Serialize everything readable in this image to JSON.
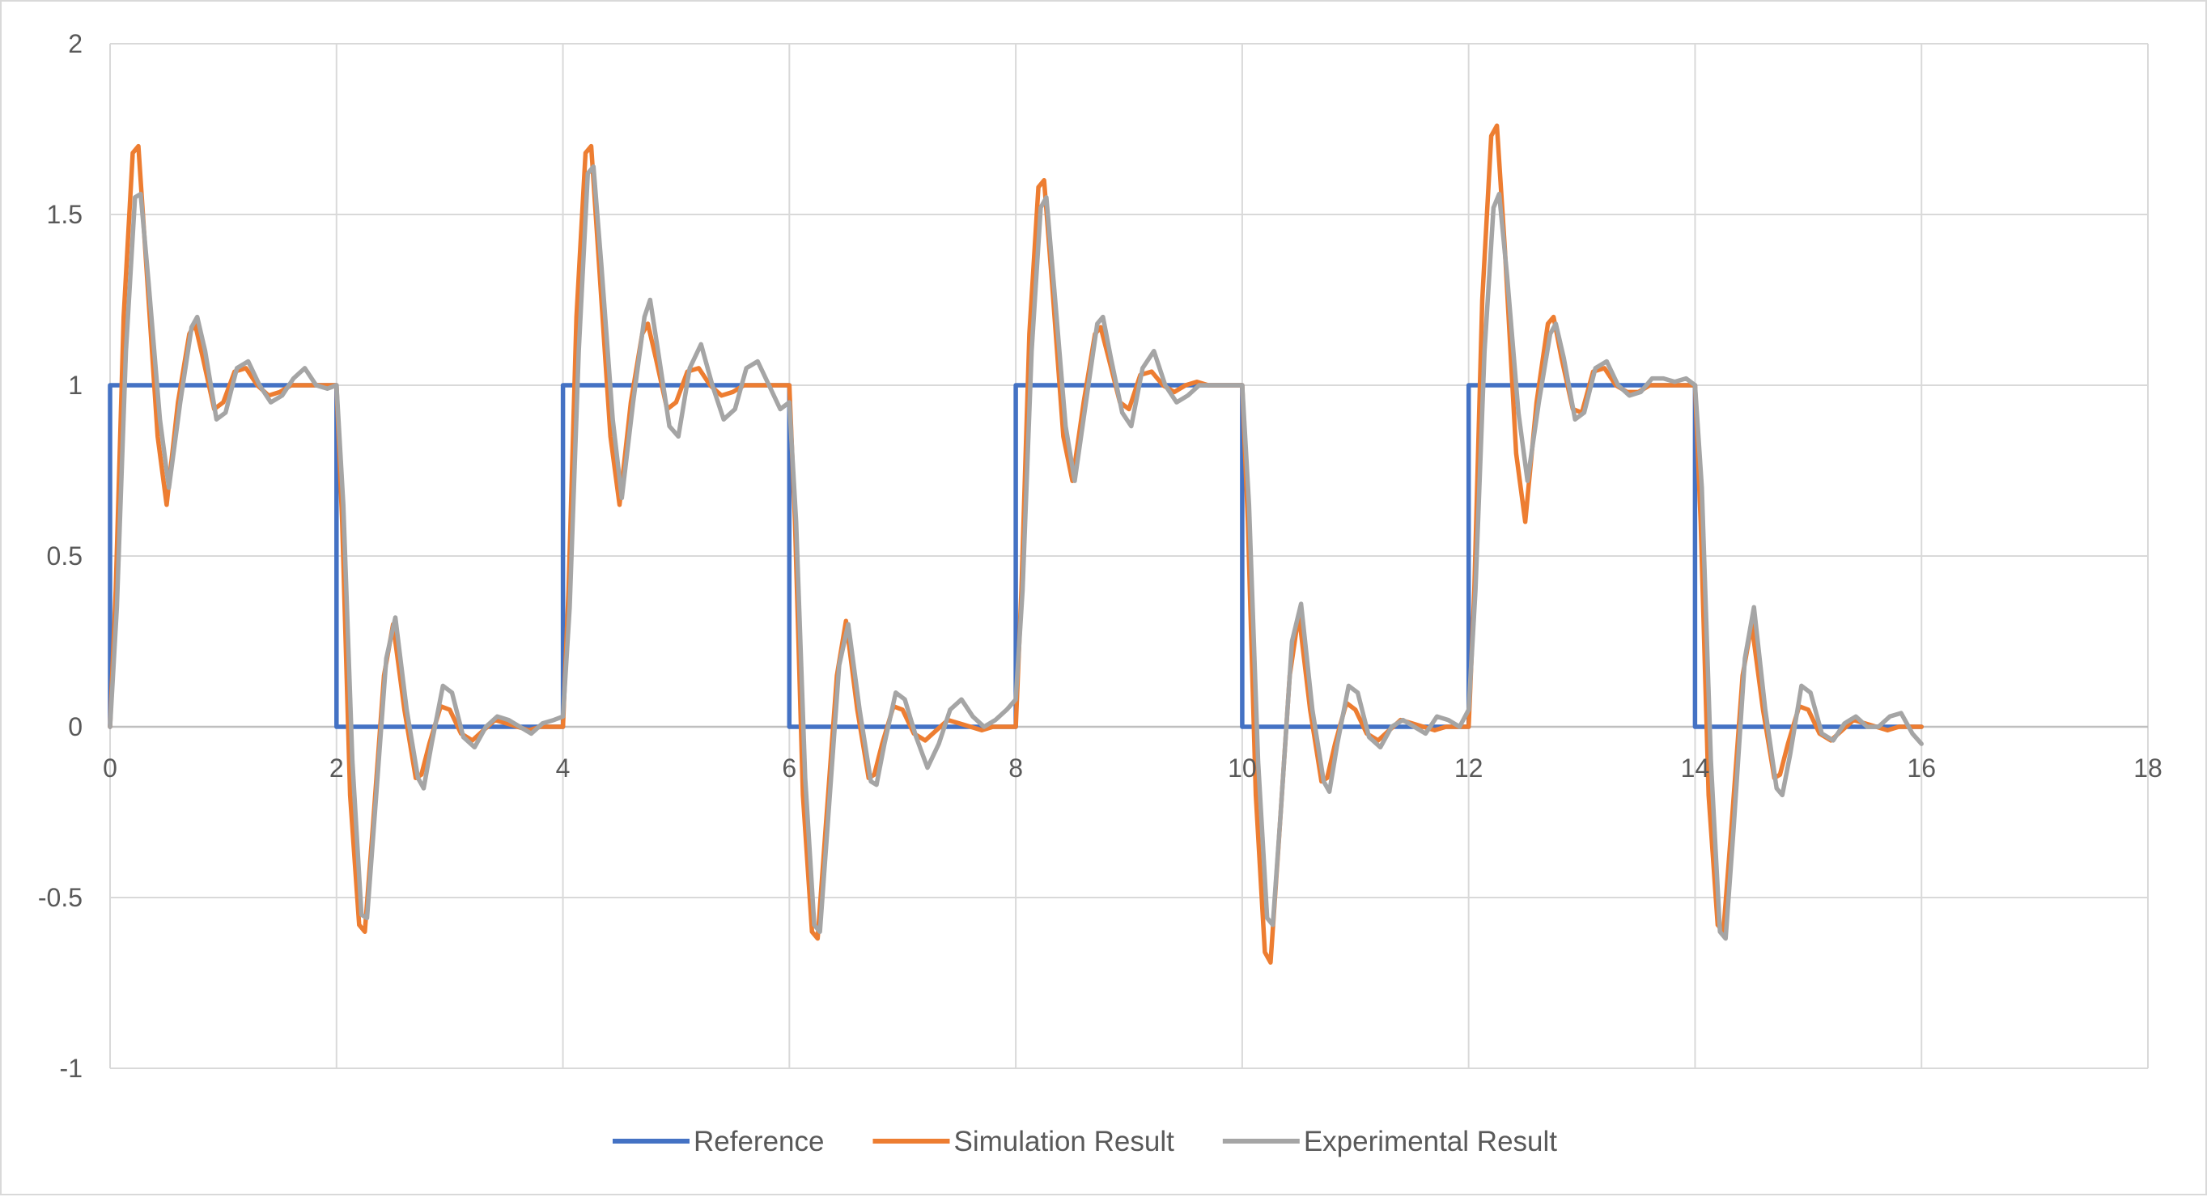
{
  "chart_data": {
    "type": "line",
    "title": "",
    "xlabel": "",
    "ylabel": "",
    "xlim": [
      0,
      18
    ],
    "ylim": [
      -1,
      2
    ],
    "x_ticks": [
      0,
      2,
      4,
      6,
      8,
      10,
      12,
      14,
      16,
      18
    ],
    "y_ticks": [
      -1,
      -0.5,
      0,
      0.5,
      1,
      1.5,
      2
    ],
    "x_tick_labels": [
      "0",
      "2",
      "4",
      "6",
      "8",
      "10",
      "12",
      "14",
      "16",
      "18"
    ],
    "y_tick_labels": [
      "-1",
      "-0.5",
      "0",
      "0.5",
      "1",
      "1.5",
      "2"
    ],
    "grid": true,
    "legend_position": "bottom",
    "series": [
      {
        "name": "Reference",
        "color": "#4472c4",
        "x": [
          0,
          0,
          2,
          2,
          4,
          4,
          6,
          6,
          8,
          8,
          10,
          10,
          12,
          12,
          14,
          14,
          16
        ],
        "y": [
          0,
          1,
          1,
          0,
          0,
          1,
          1,
          0,
          0,
          1,
          1,
          0,
          0,
          1,
          1,
          0,
          0
        ]
      },
      {
        "name": "Simulation Result",
        "color": "#ed7d31",
        "x": [
          0,
          0.05,
          0.12,
          0.2,
          0.25,
          0.32,
          0.42,
          0.5,
          0.6,
          0.7,
          0.75,
          0.82,
          0.92,
          1.0,
          1.1,
          1.2,
          1.3,
          1.4,
          1.5,
          1.6,
          1.7,
          1.8,
          1.9,
          2.0,
          2.05,
          2.12,
          2.2,
          2.25,
          2.32,
          2.42,
          2.5,
          2.6,
          2.7,
          2.75,
          2.82,
          2.92,
          3.0,
          3.1,
          3.2,
          3.3,
          3.4,
          3.5,
          3.6,
          3.7,
          3.8,
          3.9,
          4.0,
          4.05,
          4.12,
          4.2,
          4.25,
          4.32,
          4.42,
          4.5,
          4.6,
          4.7,
          4.75,
          4.82,
          4.92,
          5.0,
          5.1,
          5.2,
          5.3,
          5.4,
          5.5,
          5.6,
          5.7,
          5.8,
          5.9,
          6.0,
          6.05,
          6.12,
          6.2,
          6.25,
          6.32,
          6.42,
          6.5,
          6.6,
          6.7,
          6.75,
          6.82,
          6.92,
          7.0,
          7.1,
          7.2,
          7.3,
          7.4,
          7.5,
          7.6,
          7.7,
          7.8,
          7.9,
          8.0,
          8.05,
          8.12,
          8.2,
          8.25,
          8.32,
          8.42,
          8.5,
          8.6,
          8.7,
          8.75,
          8.82,
          8.92,
          9.0,
          9.1,
          9.2,
          9.3,
          9.4,
          9.5,
          9.6,
          9.7,
          9.8,
          9.9,
          10.0,
          10.05,
          10.12,
          10.2,
          10.25,
          10.32,
          10.42,
          10.5,
          10.6,
          10.7,
          10.75,
          10.82,
          10.92,
          11.0,
          11.1,
          11.2,
          11.3,
          11.4,
          11.5,
          11.6,
          11.7,
          11.8,
          11.9,
          12.0,
          12.05,
          12.12,
          12.2,
          12.25,
          12.32,
          12.42,
          12.5,
          12.6,
          12.7,
          12.75,
          12.82,
          12.92,
          13.0,
          13.1,
          13.2,
          13.3,
          13.4,
          13.5,
          13.6,
          13.7,
          13.8,
          13.9,
          14.0,
          14.05,
          14.12,
          14.2,
          14.25,
          14.32,
          14.42,
          14.5,
          14.6,
          14.7,
          14.75,
          14.82,
          14.92,
          15.0,
          15.1,
          15.2,
          15.3,
          15.4,
          15.5,
          15.6,
          15.7,
          15.8,
          15.9,
          16.0
        ],
        "y": [
          0,
          0.4,
          1.2,
          1.68,
          1.7,
          1.35,
          0.85,
          0.65,
          0.95,
          1.15,
          1.18,
          1.08,
          0.93,
          0.95,
          1.04,
          1.05,
          1.0,
          0.97,
          0.98,
          1.0,
          1.0,
          1.0,
          1.0,
          1.0,
          0.6,
          -0.2,
          -0.58,
          -0.6,
          -0.3,
          0.15,
          0.3,
          0.05,
          -0.15,
          -0.14,
          -0.05,
          0.06,
          0.05,
          -0.02,
          -0.04,
          -0.01,
          0.02,
          0.01,
          0.0,
          -0.01,
          0.0,
          0.0,
          0.0,
          0.4,
          1.2,
          1.68,
          1.7,
          1.35,
          0.85,
          0.65,
          0.95,
          1.15,
          1.18,
          1.08,
          0.93,
          0.95,
          1.04,
          1.05,
          1.0,
          0.97,
          0.98,
          1.0,
          1.0,
          1.0,
          1.0,
          1.0,
          0.6,
          -0.2,
          -0.6,
          -0.62,
          -0.3,
          0.15,
          0.31,
          0.05,
          -0.15,
          -0.14,
          -0.05,
          0.06,
          0.05,
          -0.02,
          -0.04,
          -0.01,
          0.02,
          0.01,
          0.0,
          -0.01,
          0.0,
          0.0,
          0.0,
          0.4,
          1.15,
          1.58,
          1.6,
          1.3,
          0.85,
          0.72,
          0.95,
          1.15,
          1.17,
          1.08,
          0.95,
          0.93,
          1.03,
          1.04,
          1.0,
          0.98,
          1.0,
          1.01,
          1.0,
          1.0,
          1.0,
          1.0,
          0.6,
          -0.2,
          -0.66,
          -0.69,
          -0.35,
          0.15,
          0.33,
          0.05,
          -0.16,
          -0.15,
          -0.05,
          0.07,
          0.05,
          -0.02,
          -0.04,
          -0.01,
          0.02,
          0.01,
          0.0,
          -0.01,
          0.0,
          0.0,
          0.0,
          0.4,
          1.25,
          1.73,
          1.76,
          1.4,
          0.8,
          0.6,
          0.95,
          1.18,
          1.2,
          1.08,
          0.93,
          0.92,
          1.04,
          1.05,
          1.0,
          0.98,
          0.98,
          1.0,
          1.0,
          1.0,
          1.0,
          1.0,
          0.6,
          -0.2,
          -0.58,
          -0.6,
          -0.3,
          0.15,
          0.3,
          0.05,
          -0.15,
          -0.14,
          -0.05,
          0.06,
          0.05,
          -0.02,
          -0.04,
          -0.01,
          0.02,
          0.01,
          0.0,
          -0.01,
          0.0,
          0.0,
          0.0
        ]
      },
      {
        "name": "Experimental Result",
        "color": "#a5a5a5",
        "x": [
          0,
          0.06,
          0.14,
          0.22,
          0.27,
          0.34,
          0.44,
          0.52,
          0.62,
          0.72,
          0.77,
          0.84,
          0.94,
          1.02,
          1.12,
          1.22,
          1.32,
          1.42,
          1.52,
          1.62,
          1.72,
          1.82,
          1.92,
          2.0,
          2.06,
          2.14,
          2.22,
          2.27,
          2.34,
          2.44,
          2.52,
          2.62,
          2.72,
          2.77,
          2.84,
          2.94,
          3.02,
          3.12,
          3.22,
          3.32,
          3.42,
          3.52,
          3.62,
          3.72,
          3.82,
          3.92,
          4.0,
          4.06,
          4.14,
          4.22,
          4.27,
          4.34,
          4.44,
          4.52,
          4.62,
          4.72,
          4.77,
          4.84,
          4.94,
          5.02,
          5.12,
          5.22,
          5.32,
          5.42,
          5.52,
          5.62,
          5.72,
          5.82,
          5.92,
          6.0,
          6.06,
          6.14,
          6.22,
          6.27,
          6.34,
          6.44,
          6.52,
          6.62,
          6.72,
          6.77,
          6.84,
          6.94,
          7.02,
          7.12,
          7.22,
          7.32,
          7.42,
          7.52,
          7.62,
          7.72,
          7.82,
          7.92,
          8.0,
          8.06,
          8.14,
          8.22,
          8.27,
          8.34,
          8.44,
          8.52,
          8.62,
          8.72,
          8.77,
          8.84,
          8.94,
          9.02,
          9.12,
          9.22,
          9.32,
          9.42,
          9.52,
          9.62,
          9.72,
          9.82,
          9.92,
          10.0,
          10.06,
          10.14,
          10.22,
          10.27,
          10.34,
          10.44,
          10.52,
          10.62,
          10.72,
          10.77,
          10.84,
          10.94,
          11.02,
          11.12,
          11.22,
          11.32,
          11.42,
          11.52,
          11.62,
          11.72,
          11.82,
          11.92,
          12.0,
          12.06,
          12.14,
          12.22,
          12.27,
          12.34,
          12.44,
          12.52,
          12.62,
          12.72,
          12.77,
          12.84,
          12.94,
          13.02,
          13.12,
          13.22,
          13.32,
          13.42,
          13.52,
          13.62,
          13.72,
          13.82,
          13.92,
          14.0,
          14.06,
          14.14,
          14.22,
          14.27,
          14.34,
          14.44,
          14.52,
          14.62,
          14.72,
          14.77,
          14.84,
          14.94,
          15.02,
          15.12,
          15.22,
          15.32,
          15.42,
          15.52,
          15.62,
          15.72,
          15.82,
          15.92,
          16.0
        ],
        "y": [
          0,
          0.35,
          1.1,
          1.55,
          1.56,
          1.3,
          0.9,
          0.7,
          0.95,
          1.17,
          1.2,
          1.1,
          0.9,
          0.92,
          1.05,
          1.07,
          1.0,
          0.95,
          0.97,
          1.02,
          1.05,
          1.0,
          0.99,
          1.0,
          0.65,
          -0.1,
          -0.55,
          -0.56,
          -0.25,
          0.2,
          0.32,
          0.05,
          -0.15,
          -0.18,
          -0.05,
          0.12,
          0.1,
          -0.03,
          -0.06,
          0.0,
          0.03,
          0.02,
          0.0,
          -0.02,
          0.01,
          0.02,
          0.03,
          0.35,
          1.1,
          1.62,
          1.64,
          1.35,
          0.9,
          0.67,
          0.95,
          1.2,
          1.25,
          1.1,
          0.88,
          0.85,
          1.05,
          1.12,
          1.0,
          0.9,
          0.93,
          1.05,
          1.07,
          1.0,
          0.93,
          0.95,
          0.6,
          -0.15,
          -0.58,
          -0.6,
          -0.28,
          0.18,
          0.3,
          0.05,
          -0.16,
          -0.17,
          -0.05,
          0.1,
          0.08,
          -0.03,
          -0.12,
          -0.05,
          0.05,
          0.08,
          0.03,
          0.0,
          0.02,
          0.05,
          0.08,
          0.4,
          1.1,
          1.52,
          1.55,
          1.28,
          0.88,
          0.72,
          0.95,
          1.18,
          1.2,
          1.08,
          0.92,
          0.88,
          1.05,
          1.1,
          1.0,
          0.95,
          0.97,
          1.0,
          1.0,
          1.0,
          1.0,
          1.0,
          0.65,
          -0.1,
          -0.56,
          -0.58,
          -0.25,
          0.25,
          0.36,
          0.05,
          -0.16,
          -0.19,
          -0.05,
          0.12,
          0.1,
          -0.03,
          -0.06,
          0.0,
          0.02,
          0.0,
          -0.02,
          0.03,
          0.02,
          0.0,
          0.05,
          0.4,
          1.1,
          1.52,
          1.56,
          1.32,
          0.92,
          0.72,
          0.95,
          1.15,
          1.18,
          1.08,
          0.9,
          0.92,
          1.05,
          1.07,
          1.0,
          0.97,
          0.98,
          1.02,
          1.02,
          1.01,
          1.02,
          1.0,
          0.7,
          -0.1,
          -0.6,
          -0.62,
          -0.3,
          0.2,
          0.35,
          0.05,
          -0.18,
          -0.2,
          -0.08,
          0.12,
          0.1,
          -0.02,
          -0.04,
          0.01,
          0.03,
          0.0,
          0.0,
          0.03,
          0.04,
          -0.02,
          -0.05
        ]
      }
    ]
  }
}
